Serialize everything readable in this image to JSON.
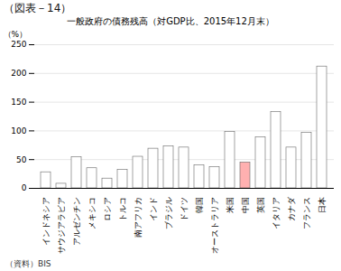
{
  "chart_data": {
    "type": "bar",
    "title": "一般政府の債務残高（対GDP比、2015年12月末）",
    "ylabel": "（%）",
    "annotations": [
      "（図表－14）",
      "（資料）BIS"
    ],
    "categories": [
      "インドネシア",
      "サウジアラビア",
      "アルゼンチン",
      "メキシコ",
      "ロシア",
      "トルコ",
      "南アフリカ",
      "インド",
      "ブラジル",
      "ドイツ",
      "韓国",
      "オーストラリア",
      "米国",
      "中国",
      "英国",
      "イタリア",
      "カナダ",
      "フランス",
      "日本"
    ],
    "values": [
      28,
      8,
      54,
      35,
      17,
      32,
      55,
      69,
      73,
      71,
      40,
      37,
      98,
      45,
      89,
      133,
      71,
      97,
      212
    ],
    "colors": [
      "#ffffff",
      "#ffffff",
      "#ffffff",
      "#ffffff",
      "#ffffff",
      "#ffffff",
      "#ffffff",
      "#ffffff",
      "#ffffff",
      "#ffffff",
      "#ffffff",
      "#ffffff",
      "#ffffff",
      "#ffb0b0",
      "#ffffff",
      "#ffffff",
      "#ffffff",
      "#ffffff",
      "#ffffff"
    ],
    "ylim": [
      0,
      250
    ],
    "yticks": [
      0,
      50,
      100,
      150,
      200,
      250
    ],
    "grid": true
  }
}
